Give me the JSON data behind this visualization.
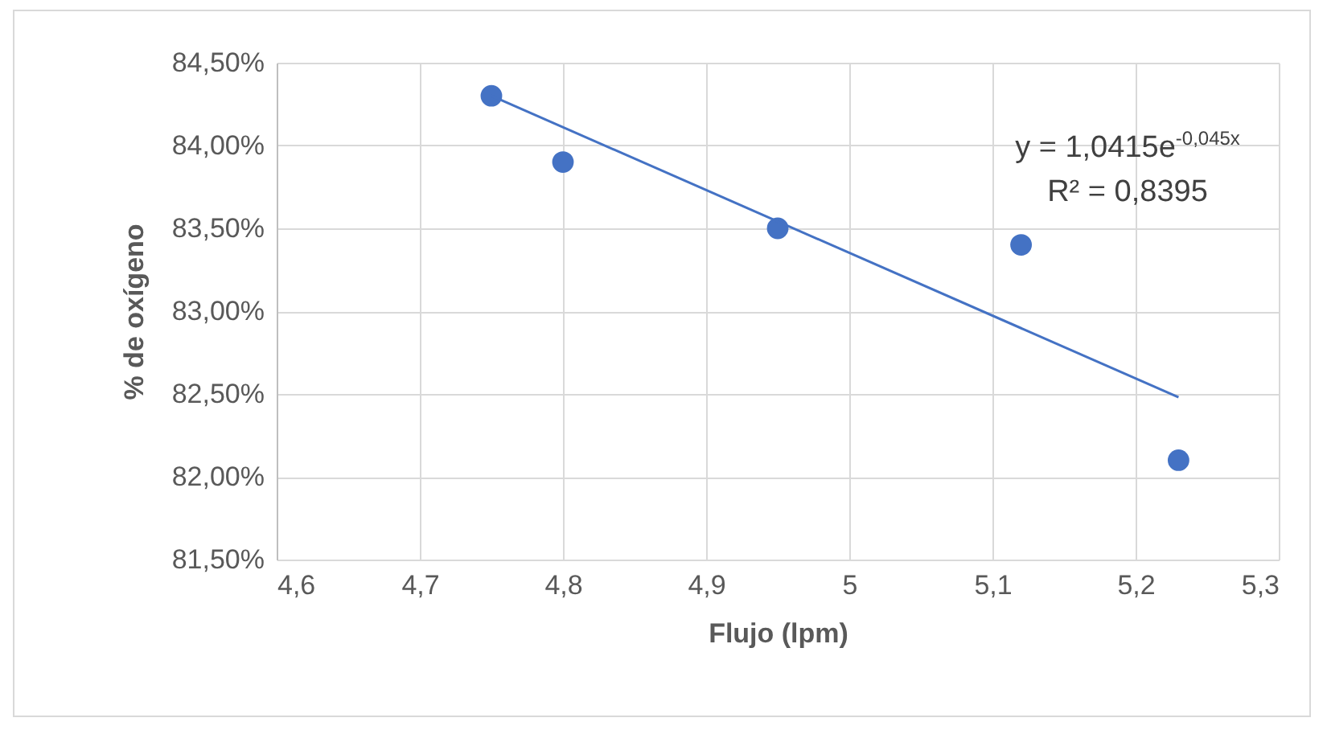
{
  "chart_data": {
    "type": "scatter",
    "xlabel": "Flujo (lpm)",
    "ylabel": "% de oxígeno",
    "annotations": [
      "y = 1,0415e$^{-0,045x}$",
      "R² = 0,8395"
    ],
    "series": [
      {
        "color": "#4472c4",
        "marker": "circle",
        "x": [
          4.75,
          4.8,
          4.95,
          5.12,
          5.23
        ],
        "values": [
          84.3,
          83.9,
          83.5,
          83.4,
          82.1
        ]
      },
      {
        "type": "line",
        "color": "#4472c4",
        "x": [
          4.75,
          5.23
        ],
        "values": [
          84.3,
          82.48
        ]
      }
    ],
    "xlim": [
      4.6,
      5.3
    ],
    "xticks": [
      {
        "value": 4.6,
        "label": "4,6"
      },
      {
        "value": 4.7,
        "label": "4,7"
      },
      {
        "value": 4.8,
        "label": "4,8"
      },
      {
        "value": 4.9,
        "label": "4,9"
      },
      5,
      {
        "value": 5.1,
        "label": "5,1"
      },
      {
        "value": 5.2,
        "label": "5,2"
      },
      {
        "value": 5.3,
        "label": "5,3"
      }
    ],
    "ylim": [
      81.5,
      84.5
    ],
    "yticks": [
      {
        "value": 81.5,
        "label": "81,50%"
      },
      {
        "value": 82,
        "label": "82,00%"
      },
      {
        "value": 82.5,
        "label": "82,50%"
      },
      {
        "value": 83,
        "label": "83,00%"
      },
      {
        "value": 83.5,
        "label": "83,50%"
      },
      {
        "value": 84,
        "label": "84,00%"
      },
      {
        "value": 84.5,
        "label": "84,50%"
      }
    ],
    "grid": true,
    "line_style": "solid"
  }
}
